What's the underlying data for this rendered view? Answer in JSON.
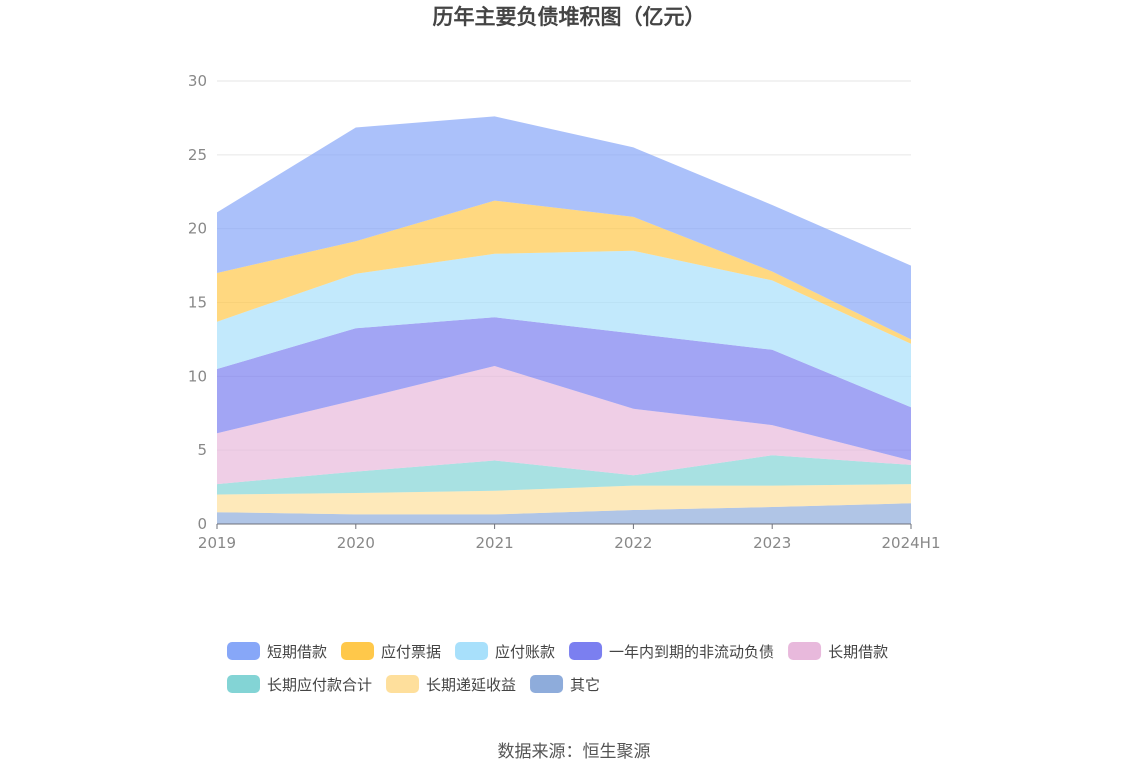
{
  "chart_data": {
    "type": "area",
    "stacked": true,
    "title": "历年主要负债堆积图（亿元）",
    "x": [
      "2019",
      "2020",
      "2021",
      "2022",
      "2023",
      "2024H1"
    ],
    "ylim": [
      0,
      30
    ],
    "yticks": [
      0,
      5,
      10,
      15,
      20,
      25,
      30
    ],
    "grid": true,
    "legend_position": "bottom",
    "series": [
      {
        "name": "其它",
        "color": "#8eacdb",
        "values": [
          0.8,
          0.65,
          0.65,
          0.95,
          1.15,
          1.4
        ]
      },
      {
        "name": "长期递延收益",
        "color": "#fedf9c",
        "values": [
          1.2,
          1.45,
          1.6,
          1.65,
          1.45,
          1.3
        ]
      },
      {
        "name": "长期应付款合计",
        "color": "#83d4d5",
        "values": [
          0.7,
          1.45,
          2.05,
          0.7,
          2.05,
          1.3
        ]
      },
      {
        "name": "长期借款",
        "color": "#e8b9dc",
        "values": [
          3.45,
          4.85,
          6.4,
          4.5,
          2.05,
          0.3
        ]
      },
      {
        "name": "一年内到期的非流动负债",
        "color": "#7b7ff0",
        "values": [
          4.35,
          4.85,
          3.3,
          5.1,
          5.1,
          3.6
        ]
      },
      {
        "name": "应付账款",
        "color": "#a8e0fb",
        "values": [
          3.2,
          3.7,
          4.3,
          5.6,
          4.7,
          4.3
        ]
      },
      {
        "name": "应付票据",
        "color": "#ffc84a",
        "values": [
          3.3,
          2.2,
          3.6,
          2.3,
          0.6,
          0.3
        ]
      },
      {
        "name": "短期借款",
        "color": "#87a7f8",
        "values": [
          4.1,
          7.7,
          5.7,
          4.7,
          4.5,
          5.0
        ]
      }
    ],
    "legend_order": [
      "短期借款",
      "应付票据",
      "应付账款",
      "一年内到期的非流动负债",
      "长期借款",
      "长期应付款合计",
      "长期递延收益",
      "其它"
    ]
  },
  "footer": {
    "source": "数据来源：恒生聚源"
  }
}
